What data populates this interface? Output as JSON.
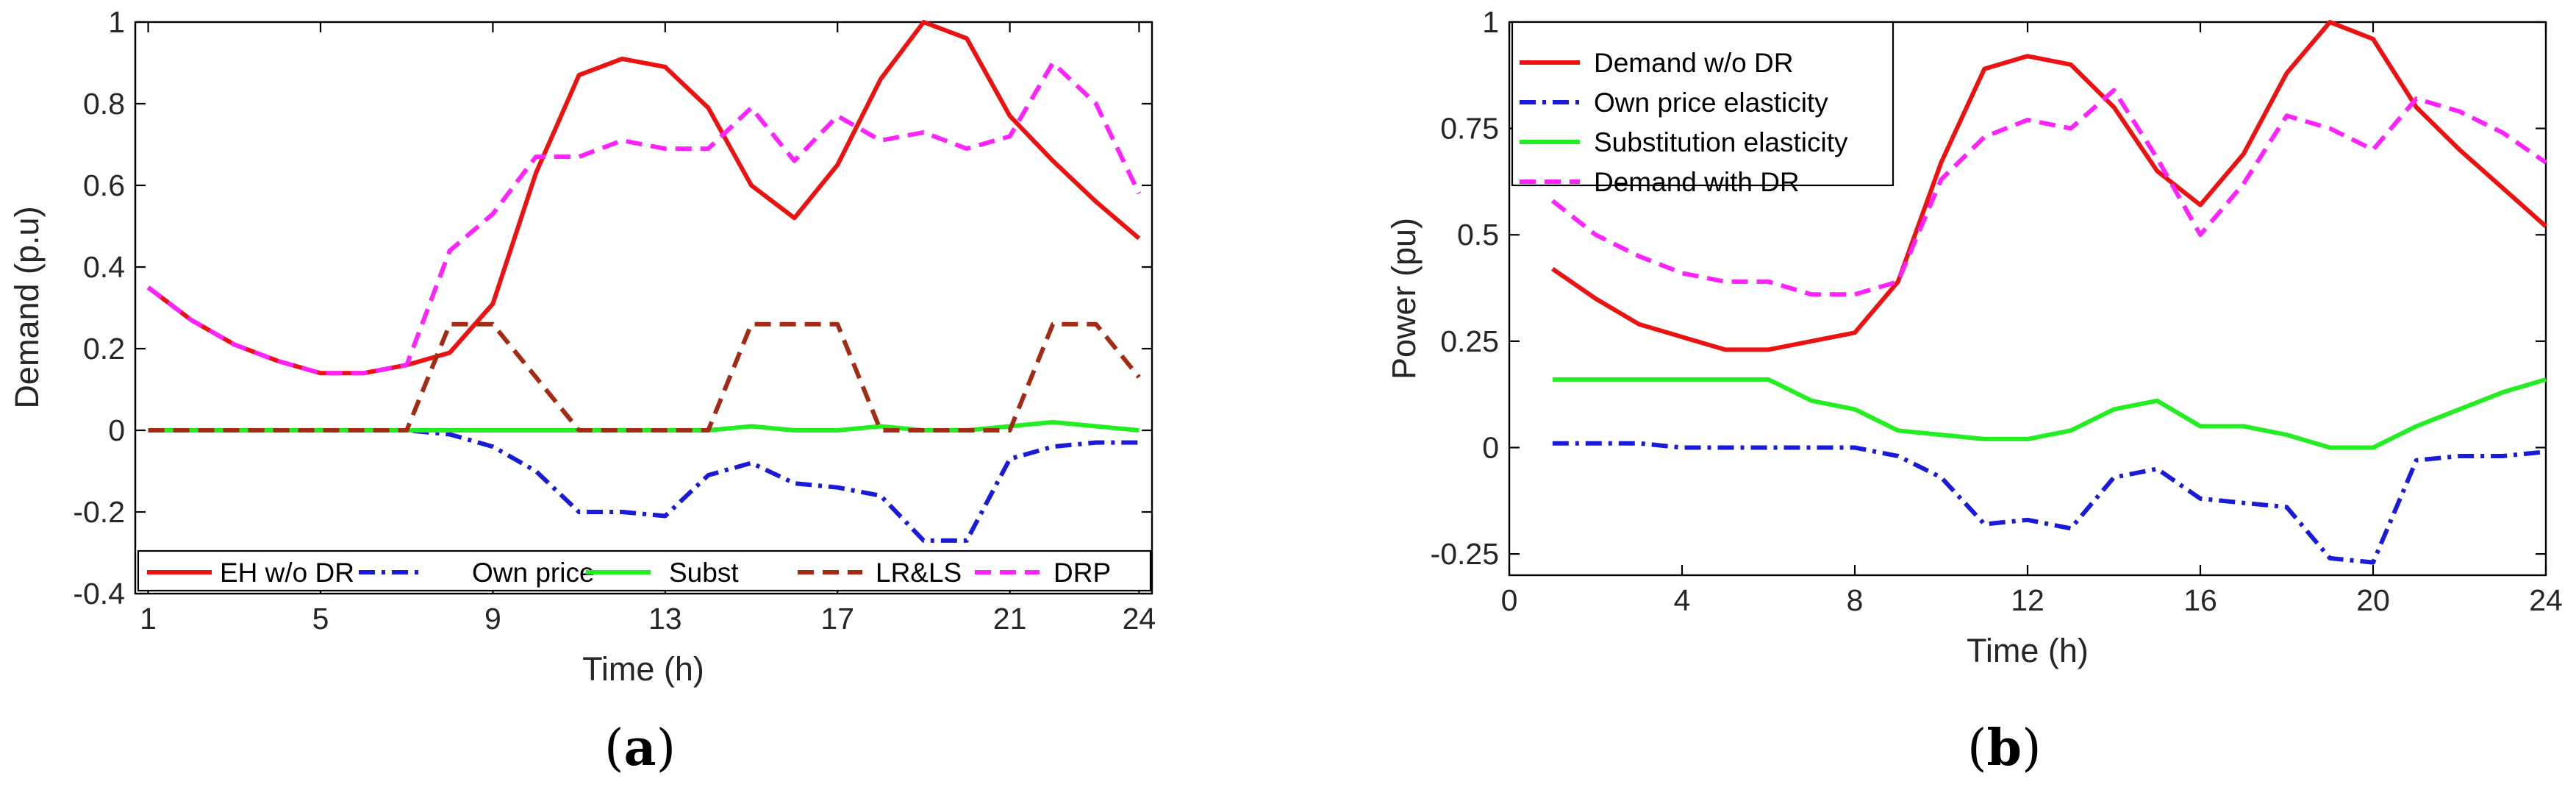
{
  "chart_data": [
    {
      "type": "line",
      "panel_label": "a",
      "title": "",
      "xlabel": "Time (h)",
      "ylabel": "Demand (p.u)",
      "xlim": [
        0.7,
        24.3
      ],
      "ylim": [
        -0.4,
        1
      ],
      "xticks": [
        1,
        5,
        9,
        13,
        17,
        21,
        24
      ],
      "xtick_labels": [
        "1",
        "5",
        "9",
        "13",
        "17",
        "21",
        "24"
      ],
      "yticks": [
        -0.4,
        -0.2,
        0,
        0.2,
        0.4,
        0.6,
        0.8,
        1
      ],
      "ytick_labels": [
        "-0.4",
        "-0.2",
        "0",
        "0.2",
        "0.4",
        "0.6",
        "0.8",
        "1"
      ],
      "legend_position": "bottom (horizontal)",
      "grid": false,
      "x": [
        1,
        2,
        3,
        4,
        5,
        6,
        7,
        8,
        9,
        10,
        11,
        12,
        13,
        14,
        15,
        16,
        17,
        18,
        19,
        20,
        21,
        22,
        23,
        24
      ],
      "series": [
        {
          "name": "EH w/o DR",
          "color": "#ee1111",
          "dash": "solid",
          "values": [
            0.35,
            0.27,
            0.21,
            0.17,
            0.14,
            0.14,
            0.16,
            0.19,
            0.31,
            0.63,
            0.87,
            0.91,
            0.89,
            0.79,
            0.6,
            0.52,
            0.65,
            0.86,
            1.0,
            0.96,
            0.77,
            0.66,
            0.56,
            0.47
          ]
        },
        {
          "name": "Own price",
          "color": "#1a1adb",
          "dash": "dashdot",
          "values": [
            0.0,
            0.0,
            0.0,
            0.0,
            0.0,
            0.0,
            0.0,
            -0.01,
            -0.04,
            -0.1,
            -0.2,
            -0.2,
            -0.21,
            -0.11,
            -0.08,
            -0.13,
            -0.14,
            -0.16,
            -0.27,
            -0.27,
            -0.07,
            -0.04,
            -0.03,
            -0.03
          ]
        },
        {
          "name": "Subst",
          "color": "#22ee22",
          "dash": "solid",
          "values": [
            0.0,
            0.0,
            0.0,
            0.0,
            0.0,
            0.0,
            0.0,
            0.0,
            0.0,
            0.0,
            0.0,
            0.0,
            0.0,
            0.0,
            0.01,
            0.0,
            0.0,
            0.01,
            0.0,
            0.0,
            0.01,
            0.02,
            0.01,
            0.0
          ]
        },
        {
          "name": "LR&LS",
          "color": "#a52a14",
          "dash": "dashed",
          "values": [
            0.0,
            0.0,
            0.0,
            0.0,
            0.0,
            0.0,
            0.0,
            0.26,
            0.26,
            0.13,
            0.0,
            0.0,
            0.0,
            0.0,
            0.26,
            0.26,
            0.26,
            0.0,
            0.0,
            0.0,
            0.0,
            0.26,
            0.26,
            0.13
          ]
        },
        {
          "name": "DRP",
          "color": "#ff22ff",
          "dash": "dashed",
          "values": [
            0.35,
            0.27,
            0.21,
            0.17,
            0.14,
            0.14,
            0.16,
            0.44,
            0.53,
            0.67,
            0.67,
            0.71,
            0.69,
            0.69,
            0.79,
            0.66,
            0.77,
            0.71,
            0.73,
            0.69,
            0.72,
            0.9,
            0.8,
            0.58
          ]
        }
      ]
    },
    {
      "type": "line",
      "panel_label": "b",
      "title": "",
      "xlabel": "Time (h)",
      "ylabel": "Power (pu)",
      "xlim": [
        0,
        24
      ],
      "ylim": [
        -0.3,
        1
      ],
      "xticks": [
        0,
        4,
        8,
        12,
        16,
        20,
        24
      ],
      "xtick_labels": [
        "0",
        "4",
        "8",
        "12",
        "16",
        "20",
        "24"
      ],
      "yticks": [
        -0.25,
        0,
        0.25,
        0.5,
        0.75,
        1
      ],
      "ytick_labels": [
        "-0.25",
        "0",
        "0.25",
        "0.5",
        "0.75",
        "1"
      ],
      "legend_position": "top-left",
      "grid": false,
      "x": [
        1,
        2,
        3,
        4,
        5,
        6,
        7,
        8,
        9,
        10,
        11,
        12,
        13,
        14,
        15,
        16,
        17,
        18,
        19,
        20,
        21,
        22,
        23,
        24
      ],
      "series": [
        {
          "name": "Demand w/o DR",
          "color": "#ee1111",
          "dash": "solid",
          "values": [
            0.42,
            0.35,
            0.29,
            0.26,
            0.23,
            0.23,
            0.25,
            0.27,
            0.39,
            0.67,
            0.89,
            0.92,
            0.9,
            0.8,
            0.65,
            0.57,
            0.69,
            0.88,
            1.0,
            0.96,
            0.8,
            0.7,
            0.61,
            0.52
          ]
        },
        {
          "name": "Own price elasticity",
          "color": "#1a1adb",
          "dash": "dashdot",
          "values": [
            0.01,
            0.01,
            0.01,
            0.0,
            0.0,
            0.0,
            0.0,
            0.0,
            -0.02,
            -0.07,
            -0.18,
            -0.17,
            -0.19,
            -0.07,
            -0.05,
            -0.12,
            -0.13,
            -0.14,
            -0.26,
            -0.27,
            -0.03,
            -0.02,
            -0.02,
            -0.01
          ]
        },
        {
          "name": "Substitution elasticity",
          "color": "#22ee22",
          "dash": "solid",
          "values": [
            0.16,
            0.16,
            0.16,
            0.16,
            0.16,
            0.16,
            0.11,
            0.09,
            0.04,
            0.03,
            0.02,
            0.02,
            0.04,
            0.09,
            0.11,
            0.05,
            0.05,
            0.03,
            0.0,
            0.0,
            0.05,
            0.09,
            0.13,
            0.16
          ]
        },
        {
          "name": "Demand with DR",
          "color": "#ff22ff",
          "dash": "dashed",
          "values": [
            0.58,
            0.5,
            0.45,
            0.41,
            0.39,
            0.39,
            0.36,
            0.36,
            0.39,
            0.63,
            0.73,
            0.77,
            0.75,
            0.84,
            0.68,
            0.5,
            0.62,
            0.78,
            0.75,
            0.7,
            0.82,
            0.79,
            0.74,
            0.67
          ]
        }
      ]
    }
  ]
}
